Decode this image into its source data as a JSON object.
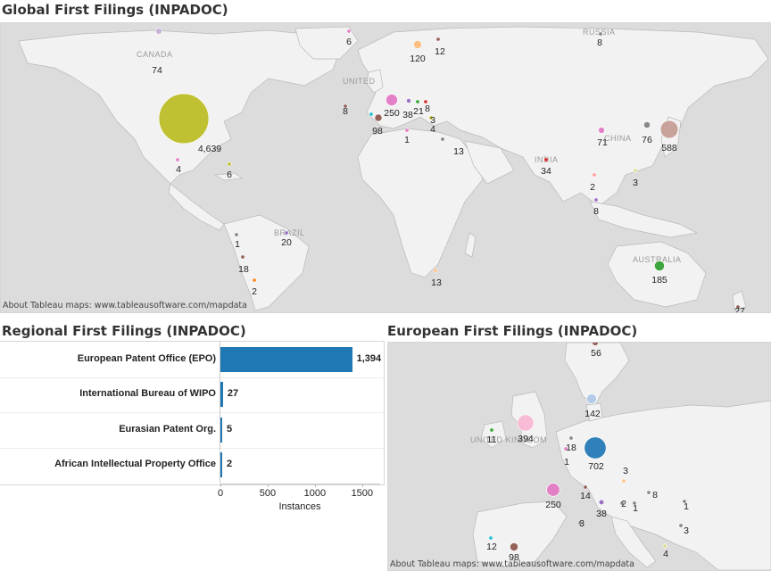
{
  "global": {
    "title": "Global First Filings (INPADOC)",
    "credit": "About Tableau maps: www.tableausoftware.com/mapdata",
    "places": [
      "CANADA",
      "RUSSIA",
      "UNITED",
      "INDIA",
      "CHINA",
      "BRAZIL",
      "AUSTRALIA"
    ]
  },
  "regional": {
    "title": "Regional First Filings (INPADOC)",
    "xlabel": "Instances"
  },
  "european": {
    "title": "European First Filings (INPADOC)",
    "credit": "About Tableau maps: www.tableausoftware.com/mapdata",
    "places": [
      "UNITED KINGDOM"
    ]
  },
  "chart_data": [
    {
      "type": "scatter",
      "subtype": "symbol-map",
      "title": "Global First Filings (INPADOC)",
      "points": [
        {
          "label": "4,639",
          "value": 4639,
          "color": "#bcbd22"
        },
        {
          "label": "74",
          "value": 74,
          "color": "#c5b0d5"
        },
        {
          "label": "6",
          "value": 6,
          "color": "#e377c2"
        },
        {
          "label": "120",
          "value": 120,
          "color": "#ffbb78"
        },
        {
          "label": "12",
          "value": 12,
          "color": "#8c564b"
        },
        {
          "label": "8",
          "value": 8,
          "color": "#7f7f7f"
        },
        {
          "label": "250",
          "value": 250,
          "color": "#e377c2"
        },
        {
          "label": "38",
          "value": 38,
          "color": "#9467bd"
        },
        {
          "label": "21",
          "value": 21,
          "color": "#2ca02c"
        },
        {
          "label": "8",
          "value": 8,
          "color": "#d62728"
        },
        {
          "label": "98",
          "value": 98,
          "color": "#8c564b"
        },
        {
          "label": "3",
          "value": 3,
          "color": "#17becf"
        },
        {
          "label": "4",
          "value": 4,
          "color": "#bcbd22"
        },
        {
          "label": "1",
          "value": 1,
          "color": "#e377c2"
        },
        {
          "label": "13",
          "value": 13,
          "color": "#7f7f7f"
        },
        {
          "label": "4",
          "value": 4,
          "color": "#e377c2"
        },
        {
          "label": "6",
          "value": 6,
          "color": "#bcbd22"
        },
        {
          "label": "71",
          "value": 71,
          "color": "#e377c2"
        },
        {
          "label": "76",
          "value": 76,
          "color": "#7f7f7f"
        },
        {
          "label": "588",
          "value": 588,
          "color": "#c49c94"
        },
        {
          "label": "34",
          "value": 34,
          "color": "#d62728"
        },
        {
          "label": "2",
          "value": 2,
          "color": "#ff9896"
        },
        {
          "label": "3",
          "value": 3,
          "color": "#dbdb8d"
        },
        {
          "label": "8",
          "value": 8,
          "color": "#9467bd"
        },
        {
          "label": "1",
          "value": 1,
          "color": "#7f7f7f"
        },
        {
          "label": "18",
          "value": 18,
          "color": "#8c564b"
        },
        {
          "label": "2",
          "value": 2,
          "color": "#ff7f0e"
        },
        {
          "label": "20",
          "value": 20,
          "color": "#9467bd"
        },
        {
          "label": "13",
          "value": 13,
          "color": "#ffbb78"
        },
        {
          "label": "185",
          "value": 185,
          "color": "#2ca02c"
        },
        {
          "label": "27",
          "value": 27,
          "color": "#8c564b"
        },
        {
          "label": "8",
          "value": 8,
          "color": "#8c564b"
        }
      ]
    },
    {
      "type": "bar",
      "orientation": "horizontal",
      "title": "Regional First Filings (INPADOC)",
      "categories": [
        "European Patent Office (EPO)",
        "International Bureau of WIPO",
        "Eurasian Patent Org.",
        "African Intellectual Property Office"
      ],
      "values": [
        1394,
        27,
        5,
        2
      ],
      "value_labels": [
        "1,394",
        "27",
        "5",
        "2"
      ],
      "xlabel": "Instances",
      "xlim": [
        0,
        1700
      ],
      "xticks": [
        0,
        500,
        1000,
        1500
      ],
      "color": "#1f77b4"
    },
    {
      "type": "scatter",
      "subtype": "symbol-map",
      "title": "European First Filings (INPADOC)",
      "points": [
        {
          "label": "56",
          "value": 56,
          "color": "#8c564b"
        },
        {
          "label": "142",
          "value": 142,
          "color": "#aec7e8"
        },
        {
          "label": "394",
          "value": 394,
          "color": "#f7b6d2"
        },
        {
          "label": "11",
          "value": 11,
          "color": "#2ca02c"
        },
        {
          "label": "18",
          "value": 18,
          "color": "#7f7f7f"
        },
        {
          "label": "1",
          "value": 1,
          "color": "#e377c2"
        },
        {
          "label": "702",
          "value": 702,
          "color": "#1f77b4"
        },
        {
          "label": "3",
          "value": 3,
          "color": "#ffbb78"
        },
        {
          "label": "250",
          "value": 250,
          "color": "#e377c2"
        },
        {
          "label": "14",
          "value": 14,
          "color": "#8c564b"
        },
        {
          "label": "38",
          "value": 38,
          "color": "#9467bd"
        },
        {
          "label": "2",
          "value": 2,
          "color": "#7f7f7f"
        },
        {
          "label": "1",
          "value": 1,
          "color": "#7f7f7f"
        },
        {
          "label": "8",
          "value": 8,
          "color": "#7f7f7f"
        },
        {
          "label": "1",
          "value": 1,
          "color": "#7f7f7f"
        },
        {
          "label": "3",
          "value": 3,
          "color": "#7f7f7f"
        },
        {
          "label": "3",
          "value": 3,
          "color": "#7f7f7f"
        },
        {
          "label": "12",
          "value": 12,
          "color": "#17becf"
        },
        {
          "label": "98",
          "value": 98,
          "color": "#8c564b"
        },
        {
          "label": "4",
          "value": 4,
          "color": "#dbdb8d"
        }
      ]
    }
  ]
}
